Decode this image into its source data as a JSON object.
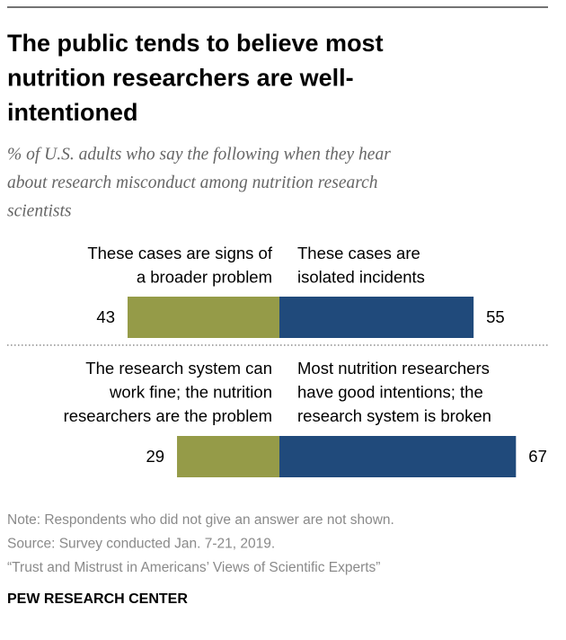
{
  "chart_data": {
    "type": "diverging_bar",
    "title": [
      "The public tends to believe most",
      "nutrition researchers are well-",
      "intentioned"
    ],
    "subtitle": [
      "% of U.S. adults who say the following when they hear",
      "about research misconduct among nutrition research",
      "scientists"
    ],
    "left_color": "#959b48",
    "right_color": "#204a7b",
    "rows": [
      {
        "left": {
          "label": [
            "These cases are signs of",
            "a broader problem"
          ],
          "value": 43
        },
        "right": {
          "label": [
            "These cases are",
            "isolated incidents"
          ],
          "value": 55
        }
      },
      {
        "left": {
          "label": [
            "The research system can",
            "work fine; the nutrition",
            "researchers are the problem"
          ],
          "value": 29
        },
        "right": {
          "label": [
            "Most nutrition researchers",
            "have good intentions; the",
            "research system is broken"
          ],
          "value": 67
        }
      }
    ],
    "notes": [
      "Note: Respondents who did not give an answer are not shown.",
      "Source: Survey conducted Jan. 7-21, 2019.",
      "“Trust and Mistrust in Americans’ Views of Scientific Experts”"
    ],
    "source_org": "PEW RESEARCH CENTER"
  }
}
